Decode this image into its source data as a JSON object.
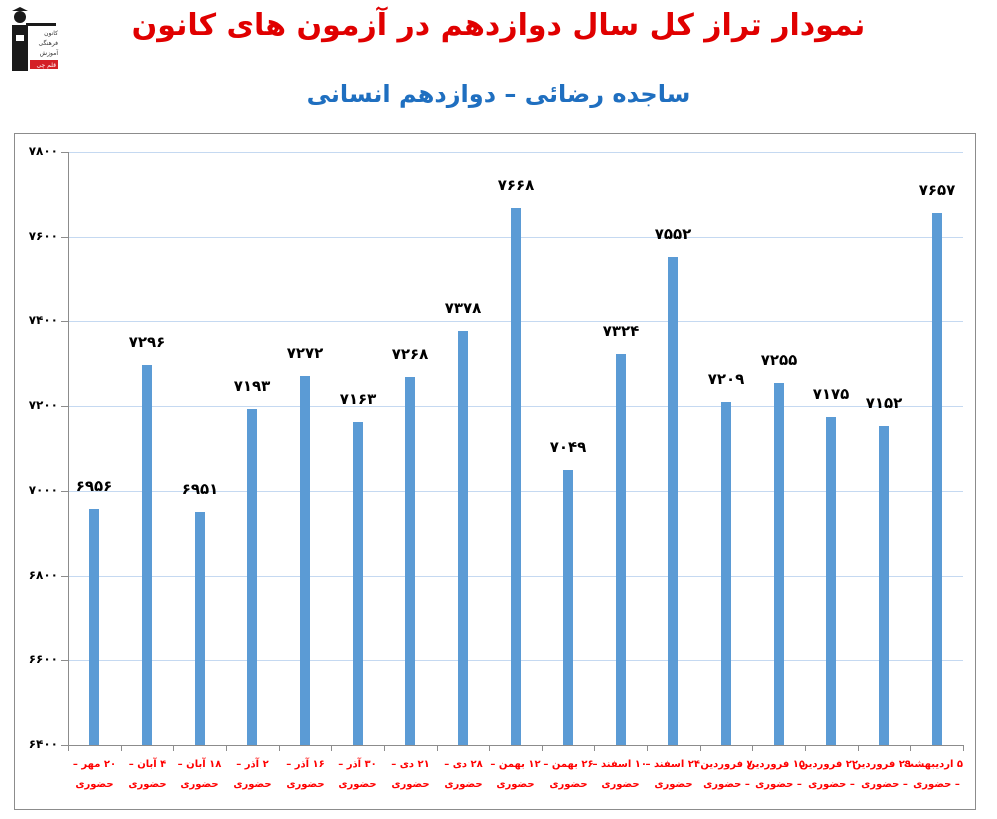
{
  "header": {
    "title": "نمودار تراز کل سال دوازدهم در آزمون های کانون",
    "subtitle": "ساجده رضائی – دوازدهم انسانی",
    "logo_text": [
      "کانون",
      "فرهنگی",
      "آموزش",
      "قلم چی"
    ]
  },
  "colors": {
    "title": "#e00000",
    "subtitle": "#1f6fc0",
    "bar": "#5b9bd5",
    "gridline": "#c5d9f1",
    "category_label": "#ff0000"
  },
  "chart_data": {
    "type": "bar",
    "title": "نمودار تراز کل سال دوازدهم در آزمون های کانون",
    "subtitle": "ساجده رضائی – دوازدهم انسانی",
    "xlabel": "",
    "ylabel": "",
    "ylim": [
      6400,
      7800
    ],
    "yticks": [
      6400,
      6600,
      6800,
      7000,
      7200,
      7400,
      7600,
      7800
    ],
    "ytick_labels": [
      "۶۴۰۰",
      "۶۶۰۰",
      "۶۸۰۰",
      "۷۰۰۰",
      "۷۲۰۰",
      "۷۴۰۰",
      "۷۶۰۰",
      "۷۸۰۰"
    ],
    "grid": true,
    "legend": "none",
    "categories": [
      "۲۰ مهر – حضوری",
      "۴ آبان – حضوری",
      "۱۸ آبان – حضوری",
      "۲ آذر – حضوری",
      "۱۶ آذر – حضوری",
      "۳۰ آذر – حضوری",
      "۲۱ دی – حضوری",
      "۲۸ دی – حضوری",
      "۱۲ بهمن – حضوری",
      "۲۶ بهمن – حضوری",
      "۱۰ اسفند – حضوری",
      "۲۴ اسفند – حضوری",
      "۷ فروردین – حضوری",
      "۱۵ فروردین – حضوری",
      "۲۲ فروردین – حضوری",
      "۲۹ فروردین – حضوری",
      "۵ اردیبهشت – حضوری"
    ],
    "category_lines": [
      [
        "۲۰ مهر –",
        "حضوری"
      ],
      [
        "۴ آبان –",
        "حضوری"
      ],
      [
        "۱۸ آبان –",
        "حضوری"
      ],
      [
        "۲ آذر –",
        "حضوری"
      ],
      [
        "۱۶ آذر –",
        "حضوری"
      ],
      [
        "۳۰ آذر –",
        "حضوری"
      ],
      [
        "۲۱ دی –",
        "حضوری"
      ],
      [
        "۲۸ دی –",
        "حضوری"
      ],
      [
        "۱۲ بهمن –",
        "حضوری"
      ],
      [
        "۲۶ بهمن –",
        "حضوری"
      ],
      [
        "۱۰ اسفند –",
        "حضوری"
      ],
      [
        "۲۴ اسفند –",
        "حضوری"
      ],
      [
        "۷ فروردین",
        "– حضوری"
      ],
      [
        "۱۵ فروردین",
        "– حضوری"
      ],
      [
        "۲۲ فروردین",
        "– حضوری"
      ],
      [
        "۲۹ فروردین",
        "– حضوری"
      ],
      [
        "۵ اردیبهشت",
        "– حضوری"
      ]
    ],
    "values": [
      6956,
      7296,
      6951,
      7193,
      7272,
      7163,
      7268,
      7378,
      7668,
      7049,
      7324,
      7552,
      7209,
      7255,
      7175,
      7152,
      7657
    ],
    "value_labels": [
      "۶۹۵۶",
      "۷۲۹۶",
      "۶۹۵۱",
      "۷۱۹۳",
      "۷۲۷۲",
      "۷۱۶۳",
      "۷۲۶۸",
      "۷۳۷۸",
      "۷۶۶۸",
      "۷۰۴۹",
      "۷۳۲۴",
      "۷۵۵۲",
      "۷۲۰۹",
      "۷۲۵۵",
      "۷۱۷۵",
      "۷۱۵۲",
      "۷۶۵۷"
    ]
  }
}
